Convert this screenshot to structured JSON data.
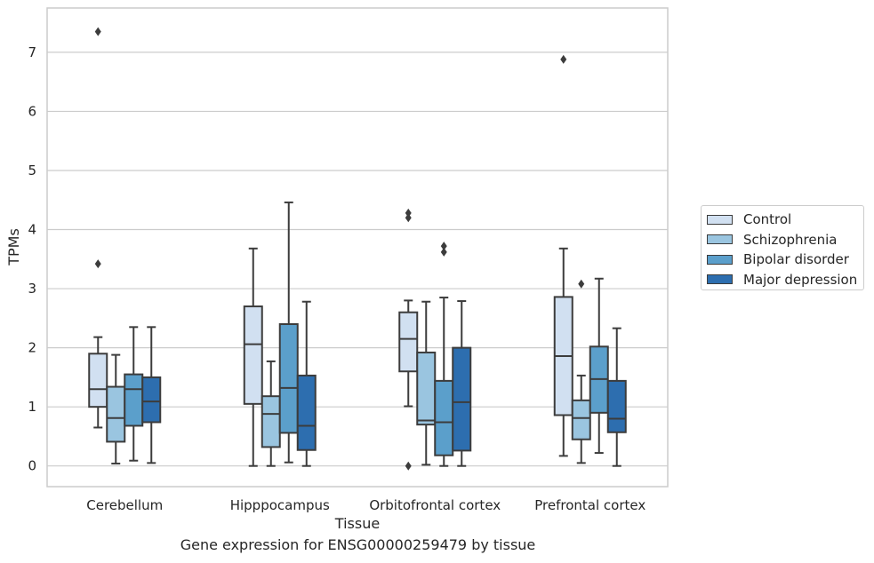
{
  "caption": "Gene expression for ENSG00000259479 by tissue",
  "chart_data": {
    "type": "boxplot",
    "xlabel": "Tissue",
    "ylabel": "TPMs",
    "ylim": [
      -0.35,
      7.75
    ],
    "yticks": [
      0,
      1,
      2,
      3,
      4,
      5,
      6,
      7
    ],
    "grid": "horizontal",
    "legend_position": "right",
    "categories": [
      "Cerebellum",
      "Hipppocampus",
      "Orbitofrontal cortex",
      "Prefrontal cortex"
    ],
    "series": [
      {
        "name": "Control",
        "color": "#d1e0f1",
        "boxes": [
          {
            "whisker_low": 0.65,
            "q1": 1.0,
            "median": 1.3,
            "q3": 1.9,
            "whisker_high": 2.18,
            "outliers": [
              3.42,
              7.35
            ]
          },
          {
            "whisker_low": 0.0,
            "q1": 1.05,
            "median": 2.06,
            "q3": 2.7,
            "whisker_high": 3.68,
            "outliers": []
          },
          {
            "whisker_low": 1.01,
            "q1": 1.6,
            "median": 2.15,
            "q3": 2.6,
            "whisker_high": 2.8,
            "outliers": [
              0.0,
              4.2,
              4.28
            ]
          },
          {
            "whisker_low": 0.17,
            "q1": 0.86,
            "median": 1.86,
            "q3": 2.86,
            "whisker_high": 3.68,
            "outliers": [
              6.88
            ]
          }
        ]
      },
      {
        "name": "Schizophrenia",
        "color": "#9ac5e0",
        "boxes": [
          {
            "whisker_low": 0.04,
            "q1": 0.41,
            "median": 0.81,
            "q3": 1.34,
            "whisker_high": 1.88,
            "outliers": []
          },
          {
            "whisker_low": 0.0,
            "q1": 0.32,
            "median": 0.88,
            "q3": 1.18,
            "whisker_high": 1.77,
            "outliers": []
          },
          {
            "whisker_low": 0.02,
            "q1": 0.7,
            "median": 0.77,
            "q3": 1.92,
            "whisker_high": 2.78,
            "outliers": []
          },
          {
            "whisker_low": 0.05,
            "q1": 0.45,
            "median": 0.81,
            "q3": 1.11,
            "whisker_high": 1.53,
            "outliers": [
              3.08
            ]
          }
        ]
      },
      {
        "name": "Bipolar disorder",
        "color": "#5b9fcb",
        "boxes": [
          {
            "whisker_low": 0.09,
            "q1": 0.68,
            "median": 1.3,
            "q3": 1.55,
            "whisker_high": 2.35,
            "outliers": []
          },
          {
            "whisker_low": 0.06,
            "q1": 0.56,
            "median": 1.32,
            "q3": 2.4,
            "whisker_high": 4.46,
            "outliers": []
          },
          {
            "whisker_low": 0.0,
            "q1": 0.18,
            "median": 0.74,
            "q3": 1.44,
            "whisker_high": 2.85,
            "outliers": [
              3.62,
              3.72
            ]
          },
          {
            "whisker_low": 0.22,
            "q1": 0.9,
            "median": 1.47,
            "q3": 2.02,
            "whisker_high": 3.17,
            "outliers": []
          }
        ]
      },
      {
        "name": "Major depression",
        "color": "#2d6eaf",
        "boxes": [
          {
            "whisker_low": 0.05,
            "q1": 0.74,
            "median": 1.09,
            "q3": 1.5,
            "whisker_high": 2.35,
            "outliers": []
          },
          {
            "whisker_low": 0.0,
            "q1": 0.27,
            "median": 0.68,
            "q3": 1.53,
            "whisker_high": 2.78,
            "outliers": []
          },
          {
            "whisker_low": 0.0,
            "q1": 0.26,
            "median": 1.08,
            "q3": 2.0,
            "whisker_high": 2.79,
            "outliers": []
          },
          {
            "whisker_low": 0.0,
            "q1": 0.57,
            "median": 0.8,
            "q3": 1.44,
            "whisker_high": 2.33,
            "outliers": []
          }
        ]
      }
    ]
  }
}
